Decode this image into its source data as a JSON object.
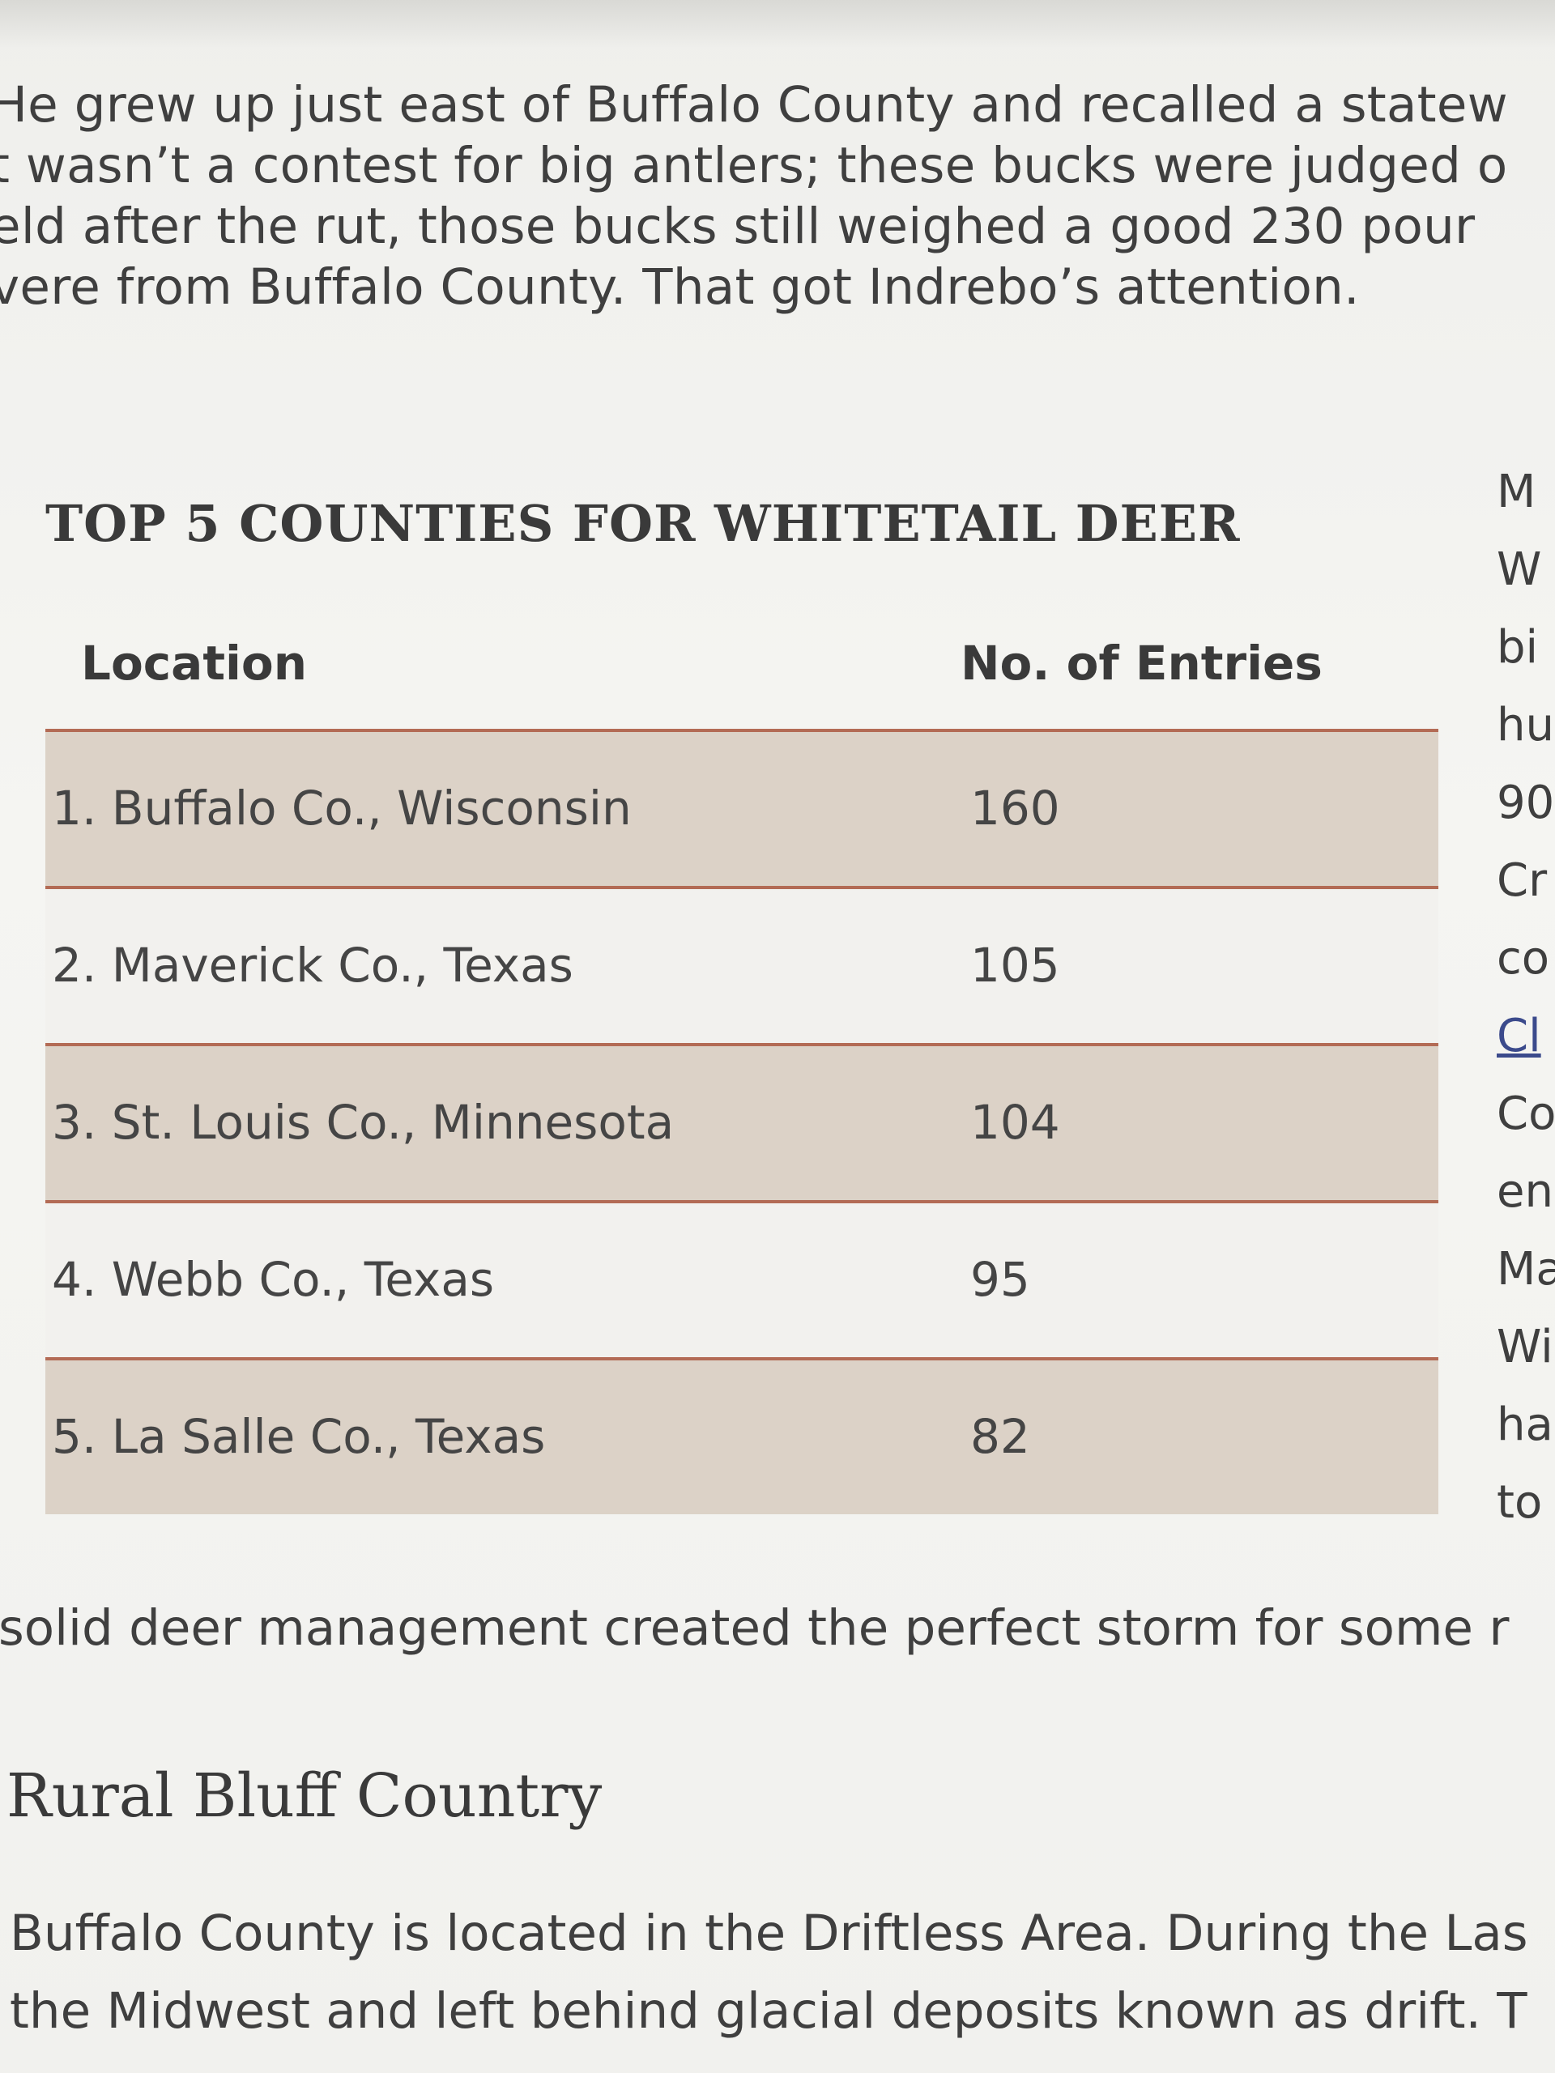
{
  "intro": {
    "lines": [
      "He grew up just east of Buffalo County and recalled a statew",
      "t wasn’t a contest for big antlers; these bucks were judged o",
      "eld after the rut, those bucks still weighed a good 230 pour",
      "vere from Buffalo County. That got Indrebo’s attention."
    ]
  },
  "table": {
    "title": "TOP 5 COUNTIES FOR WHITETAIL DEER",
    "headers": {
      "location": "Location",
      "entries": "No. of Entries"
    },
    "rows": [
      {
        "location": "1. Buffalo Co., Wisconsin",
        "entries": "160"
      },
      {
        "location": "2. Maverick Co., Texas",
        "entries": "105"
      },
      {
        "location": "3. St. Louis Co., Minnesota",
        "entries": "104"
      },
      {
        "location": "4. Webb Co., Texas",
        "entries": "95"
      },
      {
        "location": "5. La Salle Co., Texas",
        "entries": "82"
      }
    ]
  },
  "side_column": {
    "fragments": [
      "M",
      "W",
      "bi",
      "hu",
      "90",
      "Cr",
      "co",
      "Cl",
      "Co",
      "en",
      "Ma",
      "Wi",
      "ha",
      "to"
    ]
  },
  "after_table": "solid deer management created the perfect storm for some r",
  "section": {
    "heading": "Rural Bluff Country",
    "lines": [
      "Buffalo County is located in the Driftless Area. During the Las",
      "the Midwest and left behind glacial deposits known as drift. T"
    ]
  },
  "colors": {
    "row_shade": "#dcd2c7",
    "rule": "#b36b55",
    "link": "#3b4a8c"
  }
}
